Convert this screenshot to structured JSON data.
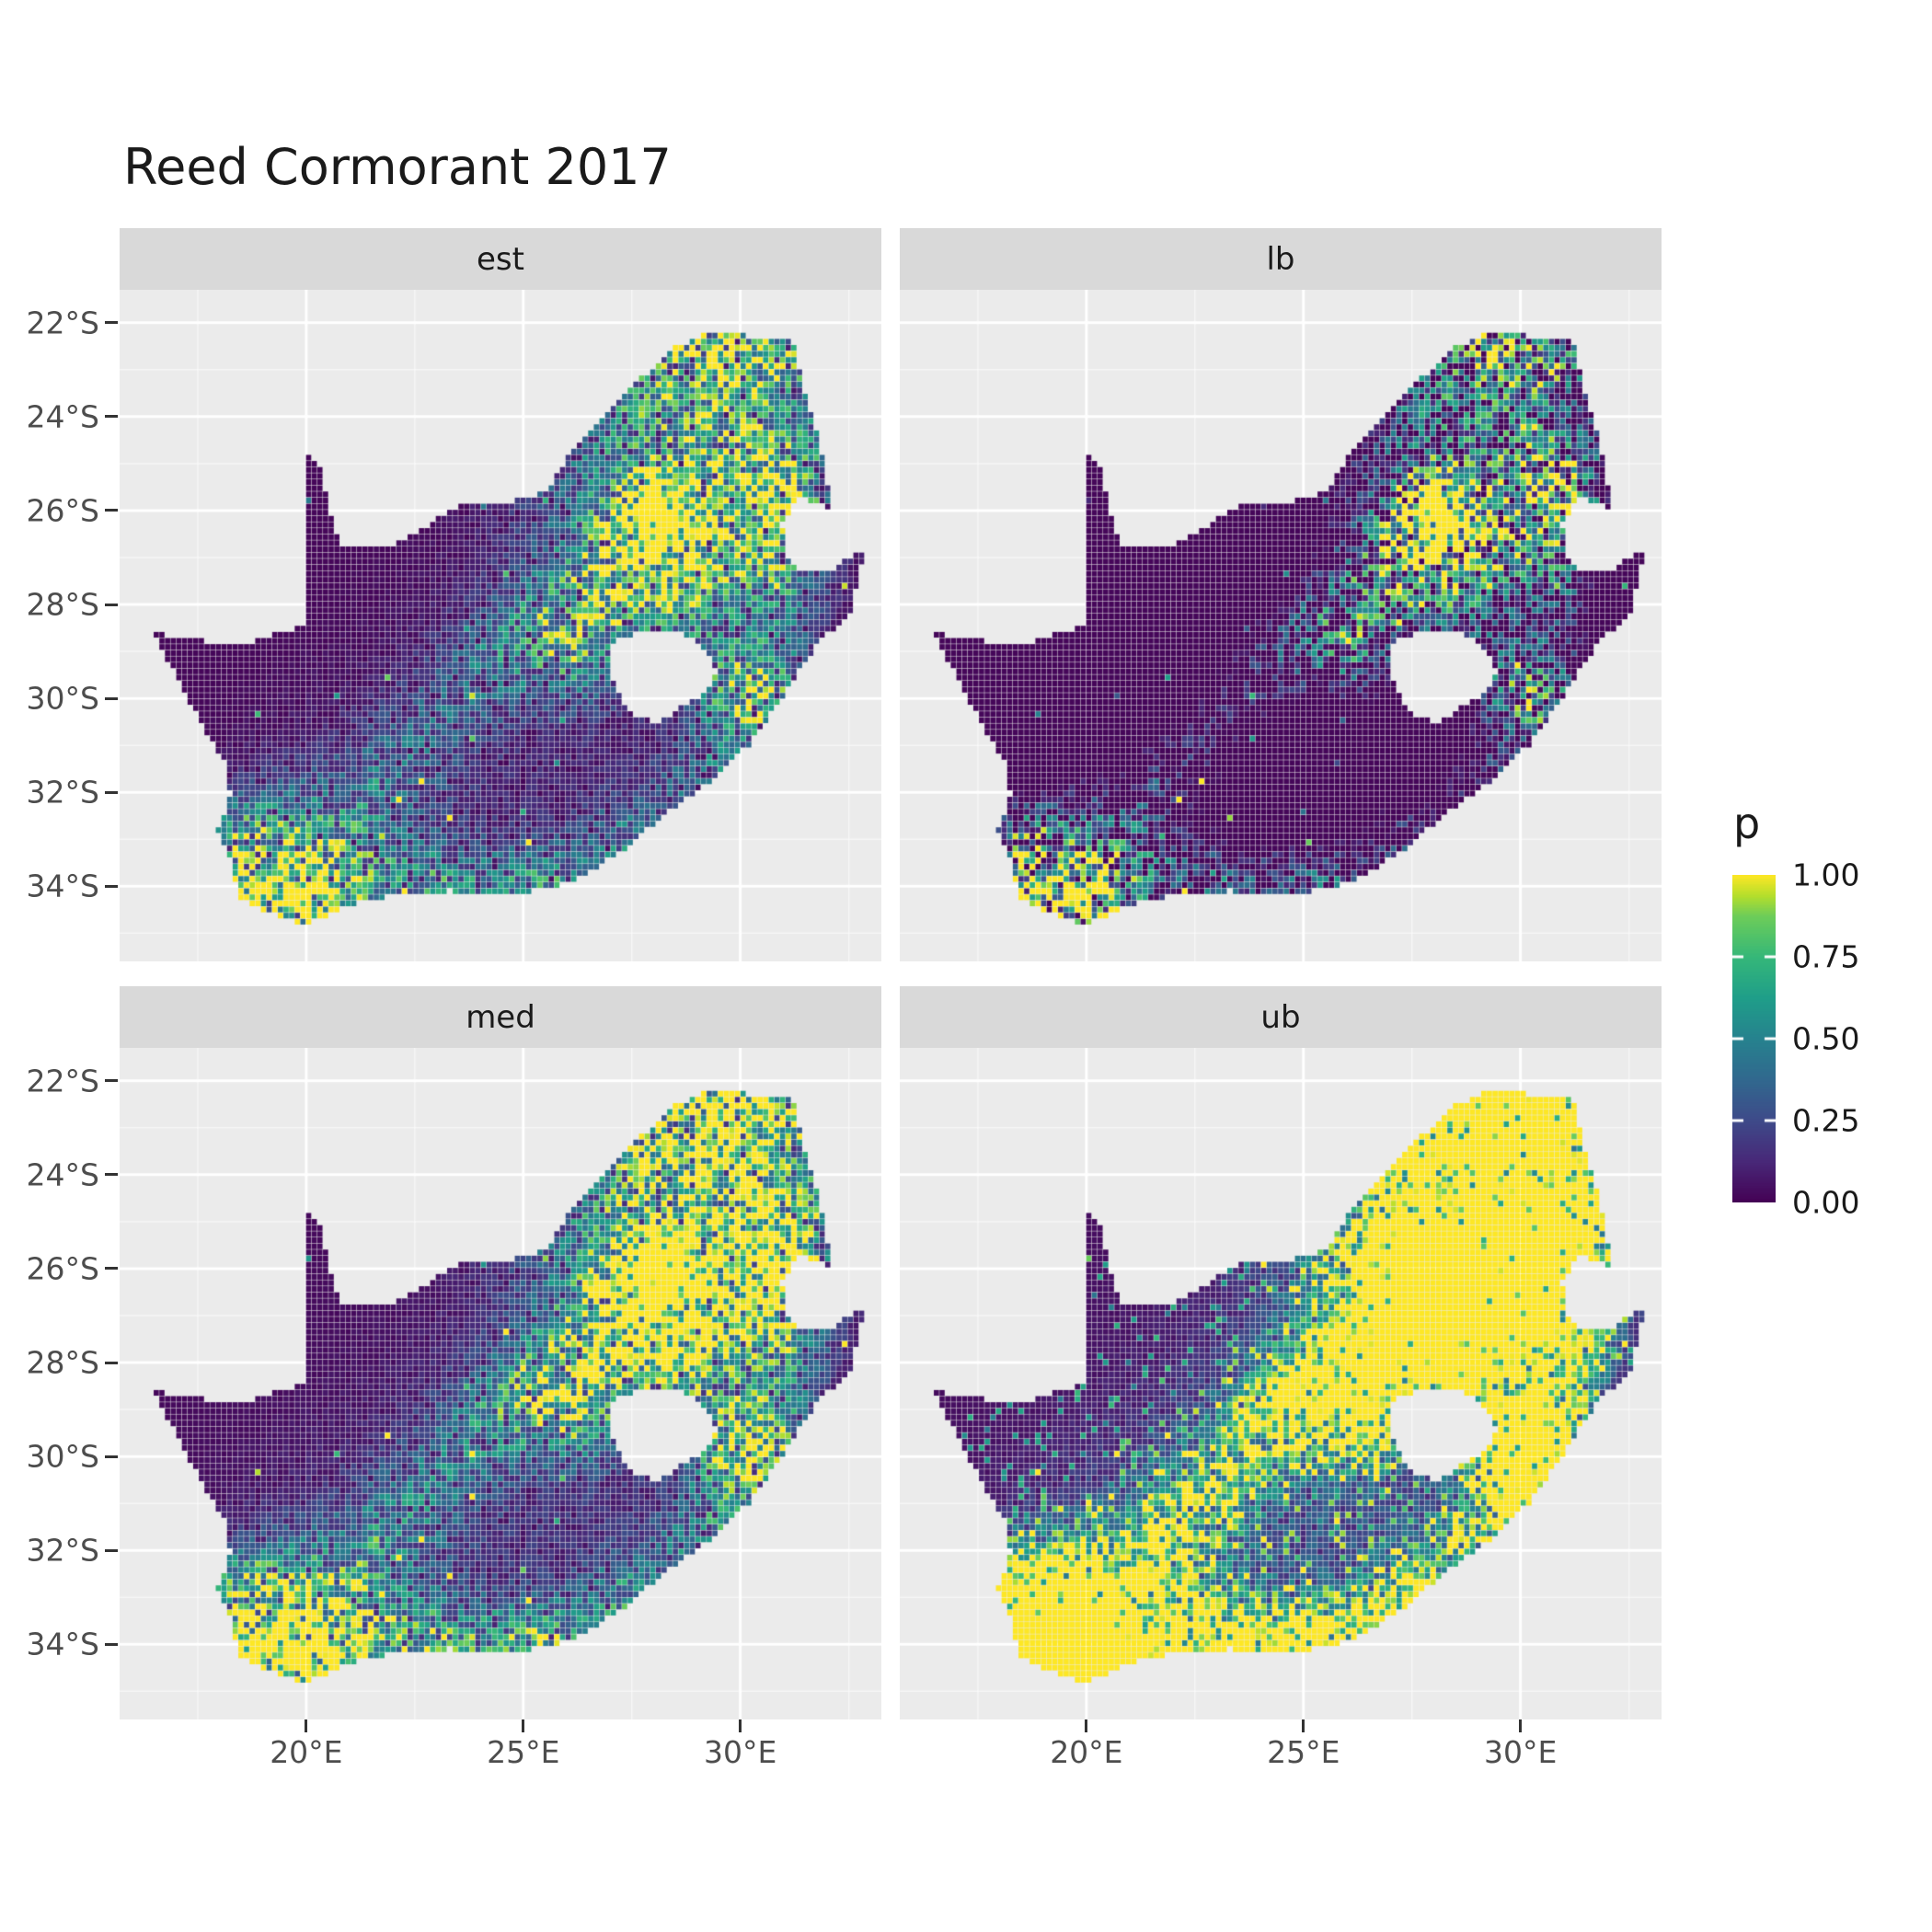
{
  "figure": {
    "title": "Reed Cormorant 2017",
    "colors": {
      "background": "#ffffff",
      "panel_background": "#ebebeb",
      "strip_background": "#d9d9d9",
      "grid_major": "#ffffff",
      "axis_text": "#4d4d4d",
      "tick_mark": "#333333",
      "title_text": "#1a1a1a"
    }
  },
  "chart_data": {
    "type": "heatmap",
    "subtype": "faceted-raster-map",
    "title": "Reed Cormorant 2017",
    "region": "South Africa",
    "facets": [
      {
        "label": "est"
      },
      {
        "label": "lb"
      },
      {
        "label": "med"
      },
      {
        "label": "ub"
      }
    ],
    "x_axis": {
      "tick_labels": [
        "20°E",
        "25°E",
        "30°E"
      ],
      "tick_values": [
        20,
        25,
        30
      ],
      "minor_ticks": [
        17.5,
        22.5,
        27.5,
        32.5
      ],
      "range_deg": [
        15.7,
        33.25
      ]
    },
    "y_axis": {
      "tick_labels": [
        "22°S",
        "24°S",
        "26°S",
        "28°S",
        "30°S",
        "32°S",
        "34°S"
      ],
      "tick_values": [
        -22,
        -24,
        -26,
        -28,
        -30,
        -32,
        -34
      ],
      "minor_ticks": [
        -23,
        -25,
        -27,
        -29,
        -31,
        -33,
        -35
      ],
      "range_deg": [
        -21.3,
        -35.6
      ]
    },
    "legend": {
      "title": "p",
      "tick_labels": [
        "1.00",
        "0.75",
        "0.50",
        "0.25",
        "0.00"
      ],
      "tick_values": [
        1.0,
        0.75,
        0.5,
        0.25,
        0.0
      ],
      "interior_tick_values": [
        0.75,
        0.5,
        0.25
      ],
      "range": [
        0,
        1
      ],
      "palette": "viridis"
    },
    "raster": {
      "cell_size_deg": 0.13,
      "viridis_stops": [
        [
          0.0,
          68,
          1,
          84
        ],
        [
          0.125,
          72,
          40,
          120
        ],
        [
          0.25,
          62,
          74,
          137
        ],
        [
          0.375,
          49,
          104,
          142
        ],
        [
          0.5,
          38,
          130,
          142
        ],
        [
          0.625,
          31,
          158,
          137
        ],
        [
          0.75,
          53,
          183,
          121
        ],
        [
          0.875,
          109,
          205,
          89
        ],
        [
          0.9375,
          180,
          222,
          44
        ],
        [
          1.0,
          253,
          231,
          37
        ]
      ],
      "facet_transforms": {
        "est": {
          "mul": 1.0,
          "add": 0.0,
          "h_add": 0.0,
          "speckle_p": 0.0,
          "speckle_amp": 0.0
        },
        "lb": {
          "mul": 1.25,
          "add": -0.45,
          "h_add": 0.0,
          "speckle_p": 0.0,
          "speckle_amp": 0.0
        },
        "med": {
          "mul": 1.2,
          "add": 0.02,
          "h_add": 0.05,
          "speckle_p": 0.0,
          "speckle_amp": 0.0
        },
        "ub": {
          "mul": 1.8,
          "add": 0.03,
          "h_add": 0.5,
          "speckle_p": 0.25,
          "speckle_amp": 0.65
        }
      },
      "noise": {
        "seed": 7,
        "bright_q": 0.993,
        "dark_q": 0.12,
        "base_lo": 0.35,
        "base_hi": 1.15
      },
      "hotspots": [
        [
          28.05,
          -26.15,
          0.55,
          1.1
        ],
        [
          27.9,
          -25.9,
          1.6,
          0.45
        ],
        [
          28.5,
          -25.0,
          2.5,
          0.22
        ],
        [
          29.8,
          -23.3,
          1.4,
          0.3
        ],
        [
          29.3,
          -22.5,
          0.7,
          0.5
        ],
        [
          30.9,
          -22.7,
          0.7,
          0.45
        ],
        [
          27.6,
          -23.1,
          0.7,
          0.3
        ],
        [
          31.3,
          -25.2,
          0.9,
          0.4
        ],
        [
          30.9,
          -26.5,
          0.8,
          0.35
        ],
        [
          30.2,
          -25.5,
          0.8,
          0.3
        ],
        [
          29.3,
          -26.9,
          0.8,
          0.25
        ],
        [
          28.3,
          -27.8,
          0.9,
          0.25
        ],
        [
          31.0,
          -27.8,
          0.7,
          0.3
        ],
        [
          30.7,
          -29.8,
          0.8,
          0.5
        ],
        [
          29.6,
          -29.4,
          0.8,
          0.35
        ],
        [
          30.1,
          -30.9,
          0.7,
          0.4
        ],
        [
          28.9,
          -31.9,
          0.7,
          0.3
        ],
        [
          27.3,
          -33.1,
          0.7,
          0.4
        ],
        [
          25.7,
          -33.9,
          0.6,
          0.45
        ],
        [
          24.4,
          -34.05,
          0.7,
          0.35
        ],
        [
          23.0,
          -34.0,
          0.7,
          0.4
        ],
        [
          21.4,
          -34.2,
          0.8,
          0.4
        ],
        [
          19.9,
          -34.45,
          0.7,
          0.55
        ],
        [
          18.65,
          -33.95,
          0.8,
          0.85
        ],
        [
          18.9,
          -34.35,
          0.5,
          0.5
        ],
        [
          18.3,
          -32.9,
          0.6,
          0.3
        ],
        [
          20.0,
          -33.8,
          0.9,
          0.3
        ],
        [
          27.6,
          -26.9,
          0.8,
          0.3
        ],
        [
          26.6,
          -27.7,
          0.8,
          0.28
        ],
        [
          25.6,
          -28.4,
          0.8,
          0.26
        ],
        [
          24.7,
          -28.9,
          0.8,
          0.26
        ],
        [
          26.3,
          -29.2,
          0.7,
          0.3
        ],
        [
          23.6,
          -29.8,
          0.8,
          0.2
        ],
        [
          22.5,
          -31.0,
          0.8,
          0.2
        ],
        [
          21.4,
          -32.0,
          0.8,
          0.2
        ],
        [
          20.6,
          -33.0,
          0.8,
          0.22
        ],
        [
          19.3,
          -32.3,
          0.7,
          0.18
        ],
        [
          21.0,
          -33.2,
          2.2,
          0.13
        ],
        [
          25.5,
          -30.5,
          2.8,
          0.1
        ]
      ]
    },
    "outline": {
      "south_africa": [
        [
          19.99,
          -24.76
        ],
        [
          20.35,
          -25.15
        ],
        [
          20.5,
          -25.9
        ],
        [
          20.72,
          -26.5
        ],
        [
          20.9,
          -26.82
        ],
        [
          21.8,
          -26.8
        ],
        [
          22.9,
          -26.25
        ],
        [
          23.6,
          -25.82
        ],
        [
          24.75,
          -25.8
        ],
        [
          25.55,
          -25.6
        ],
        [
          26.0,
          -24.9
        ],
        [
          26.9,
          -23.9
        ],
        [
          27.7,
          -23.2
        ],
        [
          28.35,
          -22.6
        ],
        [
          29.35,
          -22.15
        ],
        [
          30.3,
          -22.3
        ],
        [
          31.2,
          -22.35
        ],
        [
          31.55,
          -23.65
        ],
        [
          31.9,
          -24.8
        ],
        [
          32.05,
          -25.65
        ],
        [
          32.1,
          -25.95
        ],
        [
          31.4,
          -25.72
        ],
        [
          30.95,
          -26.25
        ],
        [
          31.15,
          -27.2
        ],
        [
          31.95,
          -27.32
        ],
        [
          32.85,
          -26.85
        ],
        [
          32.55,
          -28.2
        ],
        [
          31.8,
          -28.8
        ],
        [
          31.05,
          -29.85
        ],
        [
          30.25,
          -30.95
        ],
        [
          29.2,
          -31.85
        ],
        [
          28.2,
          -32.5
        ],
        [
          27.4,
          -33.2
        ],
        [
          26.3,
          -33.8
        ],
        [
          25.6,
          -34.05
        ],
        [
          24.6,
          -34.2
        ],
        [
          23.3,
          -34.1
        ],
        [
          22.2,
          -34.15
        ],
        [
          21.0,
          -34.4
        ],
        [
          20.0,
          -34.82
        ],
        [
          19.1,
          -34.55
        ],
        [
          18.85,
          -34.4
        ],
        [
          18.45,
          -34.3
        ],
        [
          18.3,
          -33.6
        ],
        [
          17.95,
          -32.8
        ],
        [
          18.25,
          -32.1
        ],
        [
          18.2,
          -31.5
        ],
        [
          17.5,
          -30.4
        ],
        [
          16.95,
          -29.4
        ],
        [
          16.45,
          -28.6
        ],
        [
          17.7,
          -28.78
        ],
        [
          18.6,
          -28.85
        ],
        [
          19.4,
          -28.6
        ],
        [
          19.99,
          -28.42
        ]
      ],
      "lesotho_hole": [
        [
          27.0,
          -28.85
        ],
        [
          27.7,
          -28.55
        ],
        [
          28.55,
          -28.6
        ],
        [
          29.15,
          -28.9
        ],
        [
          29.45,
          -29.35
        ],
        [
          29.25,
          -29.85
        ],
        [
          28.7,
          -30.15
        ],
        [
          28.1,
          -30.5
        ],
        [
          27.5,
          -30.35
        ],
        [
          27.1,
          -29.7
        ],
        [
          26.95,
          -29.2
        ]
      ]
    }
  }
}
